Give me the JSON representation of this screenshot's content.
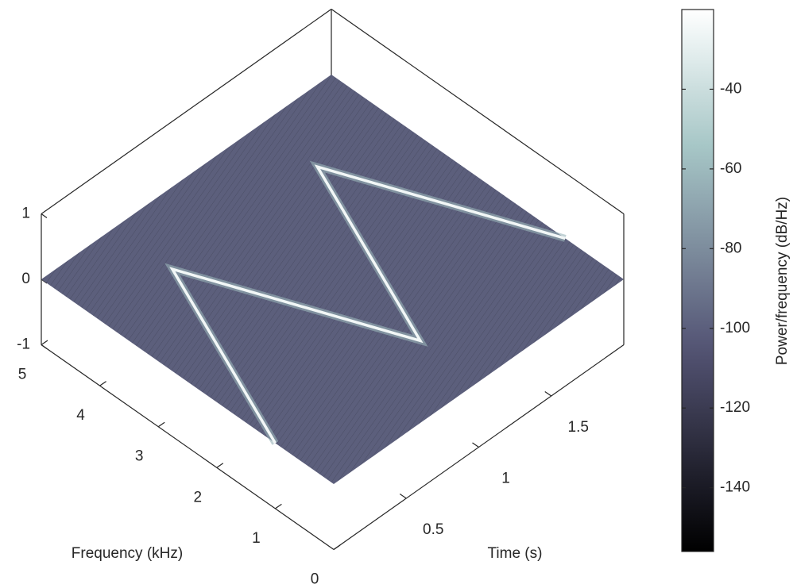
{
  "chart_data": {
    "type": "spectrogram3d",
    "xlabel": "Time (s)",
    "ylabel": "Frequency (kHz)",
    "colorbar_label": "Power/frequency (dB/Hz)",
    "xlim": [
      0,
      2
    ],
    "xticks": [
      0.5,
      1,
      1.5
    ],
    "ylim": [
      0,
      5
    ],
    "yticks": [
      0,
      1,
      2,
      3,
      4,
      5
    ],
    "zlim": [
      -1,
      1
    ],
    "zticks": [
      -1,
      0,
      1
    ],
    "clim": [
      -156,
      -20
    ],
    "cticks": [
      -140,
      -120,
      -100,
      -80,
      -60,
      -40
    ],
    "colormap": "bone",
    "floor_level": -100,
    "ridge": {
      "time": [
        0,
        0.5,
        1,
        1.5,
        2
      ],
      "frequency": [
        1,
        4,
        1,
        4,
        1
      ],
      "level": -25
    }
  }
}
